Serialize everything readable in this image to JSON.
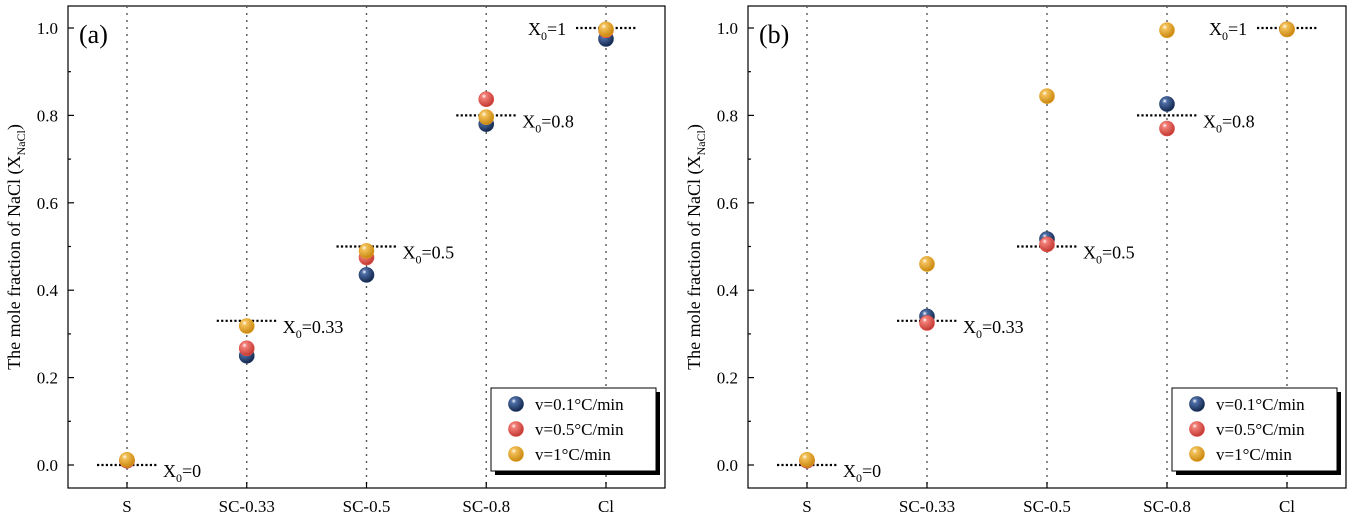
{
  "colors": {
    "v01": "#1f3a6b",
    "v05": "#e0514a",
    "v1": "#e4a11f"
  },
  "chart_data": [
    {
      "type": "scatter",
      "panel_label": "(a)",
      "ylabel": "The mole fraction of NaCl (X",
      "ylabel_sub": "NaCl",
      "ylabel_end": ")",
      "ylim": [
        0.0,
        1.05
      ],
      "yticks": [
        "0.0",
        "0.2",
        "0.4",
        "0.6",
        "0.8",
        "1.0"
      ],
      "ytick_values": [
        0.0,
        0.2,
        0.4,
        0.6,
        0.8,
        1.0
      ],
      "categories": [
        "S",
        "SC-0.33",
        "SC-0.5",
        "SC-0.8",
        "Cl"
      ],
      "series": [
        {
          "name": "v=0.1°C/min",
          "color_key": "v01",
          "values": [
            0.01,
            0.25,
            0.435,
            0.78,
            0.975
          ]
        },
        {
          "name": "v=0.5°C/min",
          "color_key": "v05",
          "values": [
            0.01,
            0.267,
            0.475,
            0.837,
            0.995
          ]
        },
        {
          "name": "v=1°C/min",
          "color_key": "v1",
          "values": [
            0.012,
            0.318,
            0.49,
            0.796,
            0.997
          ]
        }
      ],
      "reference_lines": [
        {
          "category_index": 0,
          "value": 0.0,
          "label": "X",
          "sub": "0",
          "rest": "=0",
          "side": "right"
        },
        {
          "category_index": 1,
          "value": 0.33,
          "label": "X",
          "sub": "0",
          "rest": "=0.33",
          "side": "right"
        },
        {
          "category_index": 2,
          "value": 0.5,
          "label": "X",
          "sub": "0",
          "rest": "=0.5",
          "side": "right"
        },
        {
          "category_index": 3,
          "value": 0.8,
          "label": "X",
          "sub": "0",
          "rest": "=0.8",
          "side": "right"
        },
        {
          "category_index": 4,
          "value": 1.0,
          "label": "X",
          "sub": "0",
          "rest": "=1",
          "side": "left"
        }
      ],
      "legend": {
        "position": "bottom-right",
        "entries": [
          "v=0.1°C/min",
          "v=0.5°C/min",
          "v=1°C/min"
        ]
      }
    },
    {
      "type": "scatter",
      "panel_label": "(b)",
      "ylabel": "The mole fraction of NaCl (X",
      "ylabel_sub": "NaCl",
      "ylabel_end": ")",
      "ylim": [
        0.0,
        1.05
      ],
      "yticks": [
        "0.0",
        "0.2",
        "0.4",
        "0.6",
        "0.8",
        "1.0"
      ],
      "ytick_values": [
        0.0,
        0.2,
        0.4,
        0.6,
        0.8,
        1.0
      ],
      "categories": [
        "S",
        "SC-0.33",
        "SC-0.5",
        "SC-0.8",
        "Cl"
      ],
      "series": [
        {
          "name": "v=0.1°C/min",
          "color_key": "v01",
          "values": [
            0.01,
            0.34,
            0.517,
            0.826,
            0.997
          ]
        },
        {
          "name": "v=0.5°C/min",
          "color_key": "v05",
          "values": [
            0.01,
            0.325,
            0.505,
            0.77,
            0.997
          ]
        },
        {
          "name": "v=1°C/min",
          "color_key": "v1",
          "values": [
            0.012,
            0.46,
            0.844,
            0.995,
            0.997
          ]
        }
      ],
      "reference_lines": [
        {
          "category_index": 0,
          "value": 0.0,
          "label": "X",
          "sub": "0",
          "rest": "=0",
          "side": "right"
        },
        {
          "category_index": 1,
          "value": 0.33,
          "label": "X",
          "sub": "0",
          "rest": "=0.33",
          "side": "right"
        },
        {
          "category_index": 2,
          "value": 0.5,
          "label": "X",
          "sub": "0",
          "rest": "=0.5",
          "side": "right"
        },
        {
          "category_index": 3,
          "value": 0.8,
          "label": "X",
          "sub": "0",
          "rest": "=0.8",
          "side": "right"
        },
        {
          "category_index": 4,
          "value": 1.0,
          "label": "X",
          "sub": "0",
          "rest": "=1",
          "side": "left"
        }
      ],
      "legend": {
        "position": "bottom-right",
        "entries": [
          "v=0.1°C/min",
          "v=0.5°C/min",
          "v=1°C/min"
        ]
      }
    }
  ]
}
